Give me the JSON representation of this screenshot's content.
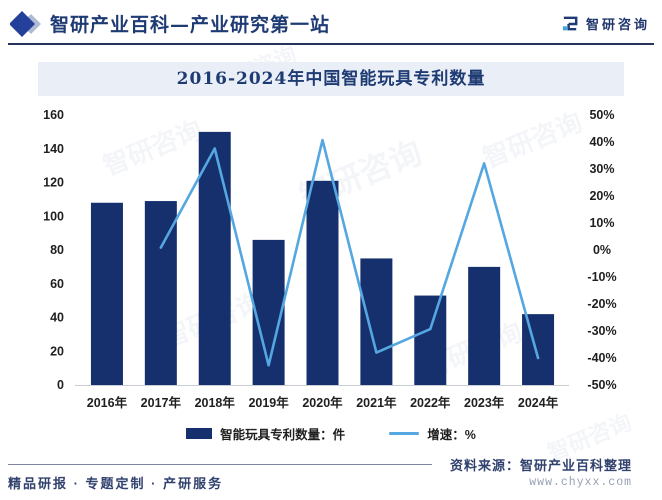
{
  "header": {
    "title": "智研产业百科—产业研究第一站",
    "logo_text": "智研咨询"
  },
  "watermark": {
    "text": "智研咨询"
  },
  "chart_data": {
    "type": "bar",
    "combo": "bar+line",
    "title": "2016-2024年中国智能玩具专利数量",
    "categories": [
      "2016年",
      "2017年",
      "2018年",
      "2019年",
      "2020年",
      "2021年",
      "2022年",
      "2023年",
      "2024年"
    ],
    "series": [
      {
        "name": "智能玩具专利数量：件",
        "type": "bar",
        "axis": "left",
        "values": [
          108,
          109,
          150,
          86,
          121,
          75,
          53,
          70,
          42
        ]
      },
      {
        "name": "增速：%",
        "type": "line",
        "axis": "right",
        "values": [
          null,
          0.9,
          37.6,
          -42.7,
          40.7,
          -38.0,
          -29.3,
          32.1,
          -40.0
        ]
      }
    ],
    "left_axis": {
      "min": 0,
      "max": 160,
      "step": 20,
      "label": ""
    },
    "right_axis": {
      "min": -50,
      "max": 50,
      "step": 10,
      "unit": "%",
      "label": ""
    },
    "colors": {
      "bar": "#16306D",
      "line": "#54A7E0"
    },
    "legend_position": "bottom",
    "grid": false
  },
  "footer": {
    "services": "精品研报 · 专题定制 · 产研服务",
    "source": "资料来源：智研产业百科整理",
    "website": "www.chyxx.com"
  }
}
